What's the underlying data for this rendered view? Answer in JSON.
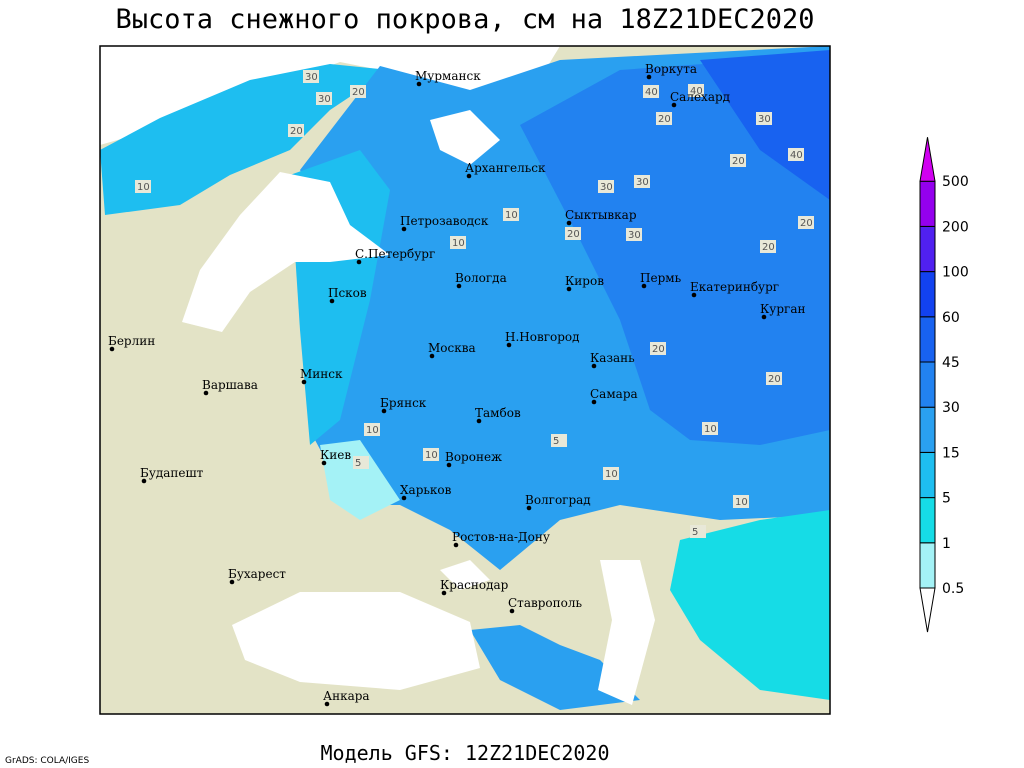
{
  "header": {
    "title": "Высота снежного покрова, см на 18Z21DEC2020",
    "subtitle": "Модель GFS: 12Z21DEC2020",
    "credit": "GrADS: COLA/IGES"
  },
  "colorbar": {
    "levels": [
      "0.5",
      "1",
      "5",
      "15",
      "30",
      "45",
      "60",
      "100",
      "200",
      "500"
    ],
    "colors": [
      "#ffffff",
      "#a4f2f6",
      "#16dce6",
      "#1ebef0",
      "#2aa0f0",
      "#2282f0",
      "#1862f0",
      "#1242f0",
      "#5020f0",
      "#9400ee",
      "#d000f0"
    ]
  },
  "cities": [
    "Мурманск",
    "Воркута",
    "Салехард",
    "Архангельск",
    "Петрозаводск",
    "Сыктывкар",
    "С.Петербург",
    "Вологда",
    "Киров",
    "Пермь",
    "Екатеринбург",
    "Псков",
    "Курган",
    "Берлин",
    "Н.Новгород",
    "Москва",
    "Казань",
    "Варшава",
    "Минск",
    "Самара",
    "Брянск",
    "Тамбов",
    "Киев",
    "Воронеж",
    "Будапешт",
    "Харьков",
    "Волгоград",
    "Ростов-на-Дону",
    "Бухарест",
    "Краснодар",
    "Ставрополь",
    "Анкара"
  ],
  "contour_labels": [
    "30",
    "30",
    "20",
    "20",
    "40",
    "40",
    "20",
    "30",
    "40",
    "10",
    "30",
    "10",
    "20",
    "30",
    "20",
    "30",
    "20",
    "20",
    "10",
    "20",
    "20",
    "10",
    "10",
    "5",
    "10",
    "10",
    "5",
    "10",
    "5"
  ]
}
